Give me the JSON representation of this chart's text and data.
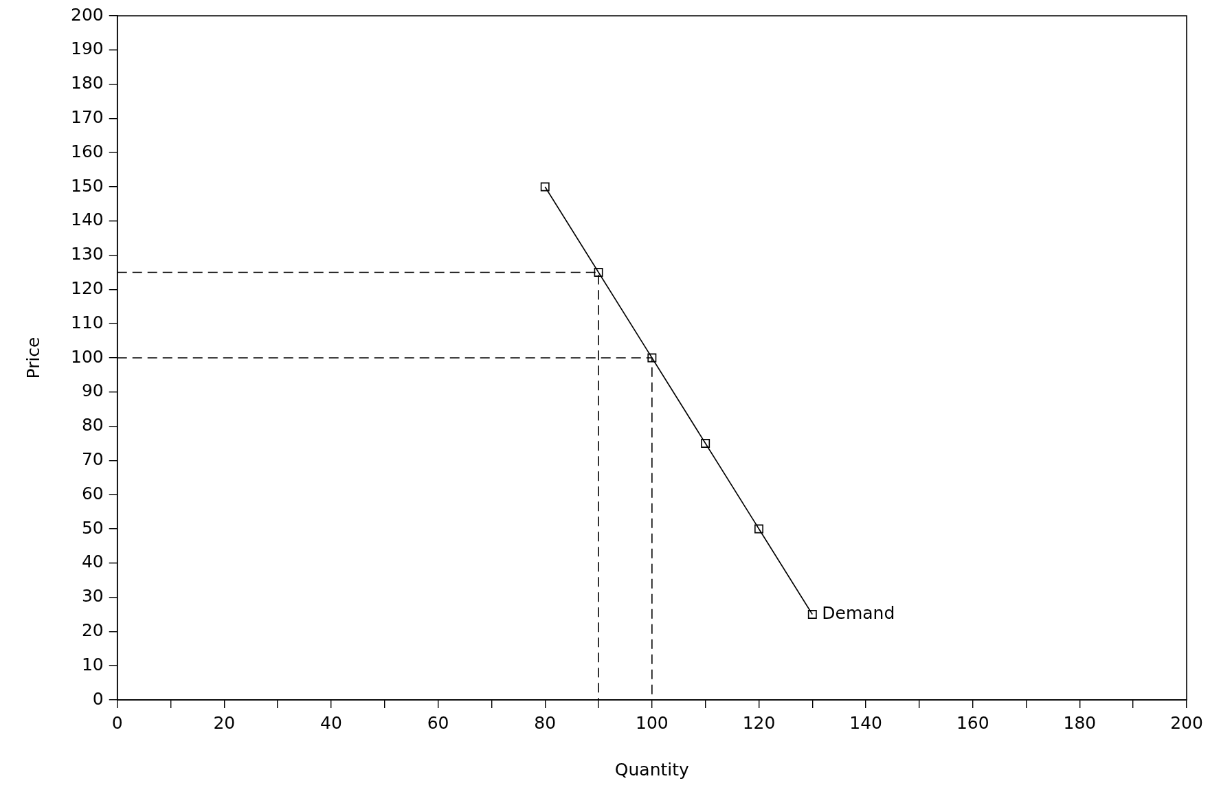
{
  "chart_data": {
    "type": "line",
    "xlabel": "Quantity",
    "ylabel": "Price",
    "xlim": [
      0,
      200
    ],
    "ylim": [
      0,
      200
    ],
    "xticks": [
      0,
      {
        "value": 10,
        "label": null
      },
      20,
      {
        "value": 30,
        "label": null
      },
      40,
      {
        "value": 50,
        "label": null
      },
      60,
      {
        "value": 70,
        "label": null
      },
      80,
      {
        "value": 90,
        "label": null
      },
      100,
      {
        "value": 110,
        "label": null
      },
      120,
      {
        "value": 130,
        "label": null
      },
      140,
      {
        "value": 150,
        "label": null
      },
      160,
      {
        "value": 170,
        "label": null
      },
      180,
      {
        "value": 190,
        "label": null
      },
      200
    ],
    "yticks": [
      0,
      10,
      20,
      30,
      40,
      50,
      60,
      70,
      80,
      90,
      100,
      110,
      120,
      130,
      140,
      150,
      160,
      170,
      180,
      190,
      200
    ],
    "grid": false,
    "legend": false,
    "series": [
      {
        "name": "Demand",
        "color": "#000000",
        "x": [
          80,
          90,
          100,
          110,
          120,
          130
        ],
        "values": [
          150,
          125,
          100,
          75,
          50,
          25
        ],
        "marker": "square",
        "line_style": "solid"
      },
      {
        "color": "#000000",
        "x": [
          0,
          90,
          90
        ],
        "values": [
          125,
          125,
          0
        ],
        "marker": "none",
        "line_style": "dashed"
      },
      {
        "color": "#000000",
        "x": [
          0,
          100,
          100
        ],
        "values": [
          100,
          100,
          0
        ],
        "marker": "none",
        "line_style": "dashed"
      }
    ]
  }
}
